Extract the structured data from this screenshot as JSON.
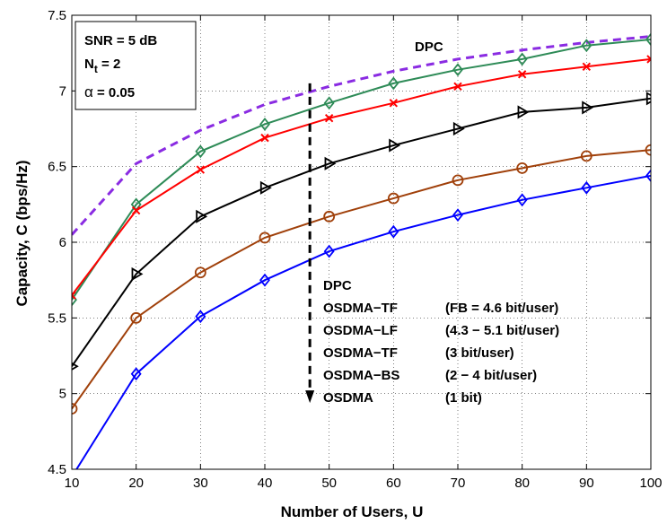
{
  "chart_data": {
    "type": "line",
    "xlabel": "Number of Users, U",
    "ylabel": "Capacity, C (bps/Hz)",
    "xlim": [
      10,
      100
    ],
    "ylim": [
      4.5,
      7.5
    ],
    "x_ticks": [
      "10",
      "20",
      "30",
      "40",
      "50",
      "60",
      "70",
      "80",
      "90",
      "100"
    ],
    "y_ticks": [
      "4.5",
      "5",
      "5.5",
      "6",
      "6.5",
      "7",
      "7.5"
    ],
    "grid": true,
    "x": [
      10,
      20,
      30,
      40,
      50,
      60,
      70,
      80,
      90,
      100
    ],
    "series": [
      {
        "name": "DPC",
        "color": "#8a2be2",
        "style": "dashed",
        "marker": "none",
        "values": [
          6.05,
          6.52,
          6.74,
          6.91,
          7.03,
          7.13,
          7.21,
          7.27,
          7.32,
          7.36
        ]
      },
      {
        "name": "OSDMA-TF (FB = 4.6 bit/user)",
        "color": "#2e8b57",
        "style": "solid",
        "marker": "diamond",
        "values": [
          5.62,
          6.25,
          6.6,
          6.78,
          6.92,
          7.05,
          7.14,
          7.21,
          7.3,
          7.34
        ]
      },
      {
        "name": "OSDMA-LF (4.3 - 5.1 bit/user)",
        "color": "#ff0000",
        "style": "solid",
        "marker": "x",
        "values": [
          5.65,
          6.21,
          6.48,
          6.69,
          6.82,
          6.92,
          7.03,
          7.11,
          7.16,
          7.21
        ]
      },
      {
        "name": "OSDMA-TF (3 bit/user)",
        "color": "#000000",
        "style": "solid",
        "marker": "triangle-right",
        "values": [
          5.18,
          5.79,
          6.17,
          6.36,
          6.52,
          6.64,
          6.75,
          6.86,
          6.89,
          6.95
        ]
      },
      {
        "name": "OSDMA-BS (2 - 4 bit/user)",
        "color": "#a0400a",
        "style": "solid",
        "marker": "circle",
        "values": [
          4.9,
          5.5,
          5.8,
          6.03,
          6.17,
          6.29,
          6.41,
          6.49,
          6.57,
          6.61
        ]
      },
      {
        "name": "OSDMA (1 bit)",
        "color": "#0000ff",
        "style": "solid",
        "marker": "diamond",
        "values": [
          4.45,
          5.13,
          5.51,
          5.75,
          5.94,
          6.07,
          6.18,
          6.28,
          6.36,
          6.44
        ]
      }
    ],
    "params_box": {
      "snr": "SNR = 5 dB",
      "nt_main": "N",
      "nt_sub": "t",
      "nt_rest": " = 2",
      "alpha_symbol": "α",
      "alpha_rest": " = 0.05"
    },
    "dpc_label": "DPC",
    "legend_lines": [
      {
        "name": "DPC",
        "detail": ""
      },
      {
        "name": "OSDMA−TF",
        "detail": "(FB = 4.6 bit/user)"
      },
      {
        "name": "OSDMA−LF",
        "detail": "(4.3 − 5.1 bit/user)"
      },
      {
        "name": "OSDMA−TF",
        "detail": "(3 bit/user)"
      },
      {
        "name": "OSDMA−BS",
        "detail": "(2 − 4 bit/user)"
      },
      {
        "name": "OSDMA",
        "detail": "(1 bit)"
      }
    ],
    "arrow_x": 47,
    "arrow_from_y": 7.05,
    "arrow_to_y": 4.95
  }
}
